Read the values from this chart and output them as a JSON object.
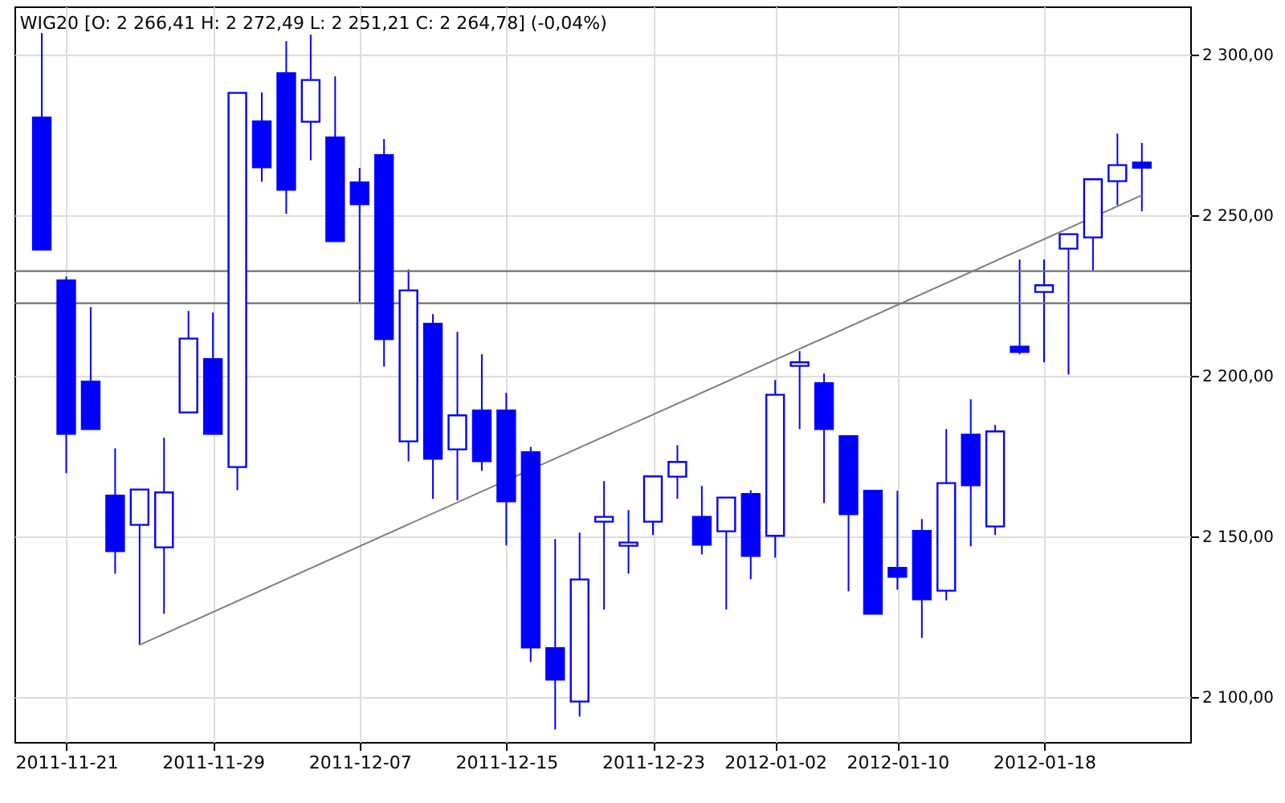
{
  "chart_data": {
    "type": "candlestick",
    "title": "WIG20 [O: 2 266,41  H: 2 272,49  L: 2 251,21  C: 2 264,78] (-0,04%)",
    "categories": [
      null,
      "2011-11-21",
      null,
      null,
      null,
      null,
      null,
      "2011-11-29",
      null,
      null,
      null,
      null,
      null,
      "2011-12-07",
      null,
      null,
      null,
      null,
      null,
      "2011-12-15",
      null,
      null,
      null,
      null,
      null,
      "2011-12-23",
      null,
      null,
      null,
      null,
      "2012-01-02",
      null,
      null,
      null,
      null,
      "2012-01-10",
      null,
      null,
      null,
      null,
      null,
      "2012-01-18",
      null,
      null,
      null,
      null
    ],
    "color": "#0000ff",
    "ohlc": [
      [
        2280.4,
        2306.7,
        2239.3,
        2239.3
      ],
      [
        2229.7,
        2230.9,
        2169.7,
        2181.9
      ],
      [
        2198.2,
        2221.4,
        2183.4,
        2183.4
      ],
      [
        2162.7,
        2177.4,
        2138.4,
        2145.4
      ],
      [
        2153.6,
        2164.6,
        2116.2,
        2164.6
      ],
      [
        2146.6,
        2180.7,
        2125.9,
        2163.7
      ],
      [
        2188.6,
        2220.2,
        2188.6,
        2211.6
      ],
      [
        2205.2,
        2219.7,
        2181.9,
        2181.9
      ],
      [
        2171.6,
        2288.1,
        2164.4,
        2288.1
      ],
      [
        2279.2,
        2288.2,
        2260.4,
        2264.9
      ],
      [
        2294.2,
        2304.2,
        2250.4,
        2257.9
      ],
      [
        2279.1,
        2306.2,
        2267.1,
        2292.1
      ],
      [
        2274.2,
        2293.2,
        2241.9,
        2241.9
      ],
      [
        2260.2,
        2264.7,
        2222.9,
        2253.4
      ],
      [
        2268.7,
        2273.7,
        2202.9,
        2211.4
      ],
      [
        2179.6,
        2233.1,
        2173.4,
        2226.6
      ],
      [
        2216.2,
        2219.2,
        2161.7,
        2174.2
      ],
      [
        2177.1,
        2213.7,
        2161.2,
        2187.7
      ],
      [
        2189.2,
        2206.7,
        2170.4,
        2173.4
      ],
      [
        2189.2,
        2194.7,
        2147.2,
        2160.9
      ],
      [
        2176.2,
        2177.9,
        2110.9,
        2115.4
      ],
      [
        2115.2,
        2149.2,
        2089.9,
        2105.4
      ],
      [
        2098.6,
        2151.2,
        2093.9,
        2136.6
      ],
      [
        2154.6,
        2167.2,
        2127.2,
        2156.1
      ],
      [
        2147.1,
        2158.2,
        2138.4,
        2148.1
      ],
      [
        2154.6,
        2168.7,
        2150.4,
        2168.7
      ],
      [
        2168.6,
        2178.4,
        2161.7,
        2173.2
      ],
      [
        2156.1,
        2165.7,
        2144.4,
        2147.4
      ],
      [
        2151.6,
        2162.1,
        2127.2,
        2162.1
      ],
      [
        2163.2,
        2164.4,
        2136.7,
        2143.9
      ],
      [
        2150.2,
        2198.7,
        2143.4,
        2194.1
      ],
      [
        2203.1,
        2207.7,
        2183.4,
        2204.2
      ],
      [
        2197.7,
        2200.7,
        2160.4,
        2183.4
      ],
      [
        2181.2,
        2181.2,
        2132.9,
        2156.9
      ],
      [
        2164.2,
        2164.2,
        2125.9,
        2125.9
      ],
      [
        2140.2,
        2164.2,
        2133.4,
        2137.4
      ],
      [
        2151.7,
        2155.4,
        2118.4,
        2130.4
      ],
      [
        2133.1,
        2183.4,
        2130.1,
        2166.6
      ],
      [
        2181.7,
        2192.7,
        2146.9,
        2165.9
      ],
      [
        2153.1,
        2184.7,
        2150.4,
        2182.7
      ],
      [
        2209.1,
        2236.2,
        2206.7,
        2207.4
      ],
      [
        2226.1,
        2236.2,
        2204.2,
        2228.2
      ],
      [
        2239.6,
        2244.1,
        2200.4,
        2244.1
      ],
      [
        2243.1,
        2261.2,
        2232.6,
        2261.2
      ],
      [
        2260.6,
        2275.4,
        2253.1,
        2265.6
      ],
      [
        2266.41,
        2272.49,
        2251.21,
        2264.78
      ]
    ],
    "series": [
      {
        "type": "line",
        "values": [
          null,
          null,
          null,
          null,
          2116.2,
          null,
          null,
          null,
          null,
          null,
          null,
          null,
          null,
          null,
          null,
          null,
          null,
          null,
          null,
          null,
          null,
          null,
          null,
          null,
          null,
          null,
          null,
          null,
          null,
          null,
          null,
          null,
          null,
          null,
          null,
          null,
          null,
          null,
          null,
          null,
          null,
          null,
          null,
          null,
          null,
          2256.2
        ],
        "color": "#808080"
      }
    ],
    "ref_lines": [
      {
        "axis": "y",
        "value": 2232.6,
        "color": "#707070"
      },
      {
        "axis": "y",
        "value": 2222.6,
        "color": "#707070"
      }
    ],
    "ylim": [
      2086,
      2315
    ],
    "yticks": [
      {
        "value": 2100,
        "label": "2 100,00"
      },
      {
        "value": 2150,
        "label": "2 150,00"
      },
      {
        "value": 2200,
        "label": "2 200,00"
      },
      {
        "value": 2250,
        "label": "2 250,00"
      },
      {
        "value": 2300,
        "label": "2 300,00"
      }
    ],
    "grid": true
  }
}
